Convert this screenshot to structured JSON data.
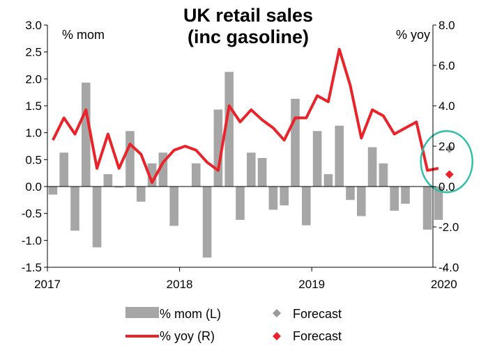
{
  "chart_data": {
    "type": "bar+line",
    "title": [
      "UK retail sales",
      "(inc gasoline)"
    ],
    "y_left": {
      "label": "% mom",
      "range": [
        -1.5,
        3.0
      ],
      "ticks": [
        "-1.5",
        "-1.0",
        "-0.5",
        "0.0",
        "0.5",
        "1.0",
        "1.5",
        "2.0",
        "2.5",
        "3.0"
      ]
    },
    "y_right": {
      "label": "% yoy",
      "range": [
        -4.0,
        8.0
      ],
      "ticks": [
        "-4.0",
        "-2.0",
        "0.0",
        "2.0",
        "4.0",
        "6.0",
        "8.0"
      ]
    },
    "x_ticks": [
      "2017",
      "2018",
      "2019",
      "2020"
    ],
    "months": [
      "2017-01",
      "2017-02",
      "2017-03",
      "2017-04",
      "2017-05",
      "2017-06",
      "2017-07",
      "2017-08",
      "2017-09",
      "2017-10",
      "2017-11",
      "2017-12",
      "2018-01",
      "2018-02",
      "2018-03",
      "2018-04",
      "2018-05",
      "2018-06",
      "2018-07",
      "2018-08",
      "2018-09",
      "2018-10",
      "2018-11",
      "2018-12",
      "2019-01",
      "2019-02",
      "2019-03",
      "2019-04",
      "2019-05",
      "2019-06",
      "2019-07",
      "2019-08",
      "2019-09",
      "2019-10",
      "2019-11",
      "2019-12"
    ],
    "series": [
      {
        "name": "% mom (L)",
        "kind": "bar",
        "axis": "left",
        "color": "#a6a6a6",
        "values": [
          -0.15,
          0.63,
          -0.82,
          1.93,
          -1.13,
          0.23,
          -0.02,
          1.03,
          -0.28,
          0.43,
          0.63,
          -0.73,
          0.0,
          0.43,
          -1.32,
          1.43,
          2.13,
          -0.62,
          0.63,
          0.53,
          -0.43,
          -0.35,
          1.63,
          -0.72,
          1.03,
          0.23,
          1.13,
          -0.25,
          -0.55,
          0.73,
          0.43,
          -0.45,
          -0.32,
          0.0,
          -0.8,
          -0.62
        ]
      },
      {
        "name": "% yoy (R)",
        "kind": "line",
        "axis": "right",
        "color": "#e8242a",
        "values": [
          2.3,
          3.4,
          2.6,
          3.8,
          0.9,
          2.6,
          0.9,
          2.1,
          1.6,
          0.2,
          1.2,
          1.8,
          2.0,
          1.8,
          1.2,
          0.8,
          4.0,
          3.2,
          3.8,
          3.3,
          2.9,
          2.3,
          3.4,
          3.4,
          4.5,
          4.2,
          6.8,
          5.0,
          2.4,
          3.8,
          3.5,
          2.6,
          2.9,
          3.2,
          0.8,
          0.9
        ]
      },
      {
        "name": "Forecast",
        "kind": "marker",
        "axis": "left",
        "color": "#999999",
        "month": "2020-01",
        "value": 0.7
      },
      {
        "name": "Forecast",
        "kind": "marker",
        "axis": "right",
        "color": "#e8242a",
        "month": "2020-01",
        "value": 0.6
      }
    ],
    "highlight": {
      "shape": "ellipse",
      "color": "#2ebfa5"
    },
    "legend": {
      "placement": "bottom",
      "items": [
        {
          "label": "% mom (L)",
          "symbol": "bar",
          "color": "#a6a6a6"
        },
        {
          "label": "Forecast",
          "symbol": "diamond",
          "color": "#999999"
        },
        {
          "label": "% yoy (R)",
          "symbol": "line",
          "color": "#e8242a"
        },
        {
          "label": "Forecast",
          "symbol": "diamond",
          "color": "#e8242a"
        }
      ]
    }
  }
}
